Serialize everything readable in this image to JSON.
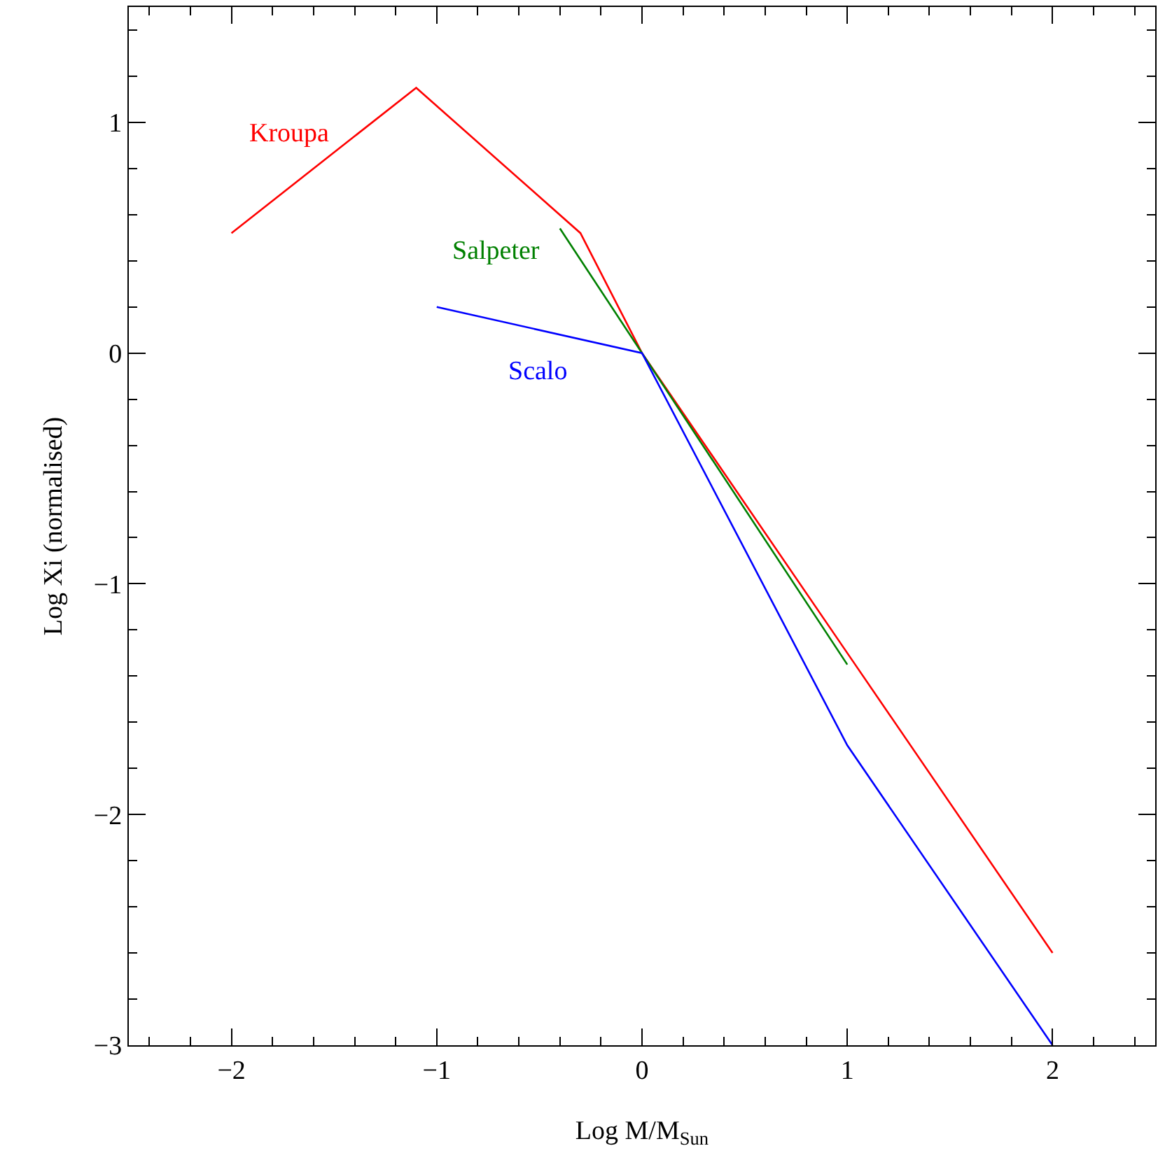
{
  "chart_data": {
    "type": "line",
    "xlabel": "Log M/M$_{Sun}$",
    "ylabel": "Log Xi (normalised)",
    "xlim": [
      -2.5,
      2.5
    ],
    "ylim": [
      -3,
      1.5
    ],
    "xticks": [
      {
        "value": -2,
        "label": "−2"
      },
      {
        "value": -1,
        "label": "−1"
      },
      0,
      1,
      2
    ],
    "yticks": [
      {
        "value": -3,
        "label": "−3"
      },
      {
        "value": -2,
        "label": "−2"
      },
      {
        "value": -1,
        "label": "−1"
      },
      0,
      1
    ],
    "grid": false,
    "legend": false,
    "marker": "none",
    "line_style": "solid",
    "series": [
      {
        "name": "Kroupa",
        "color": "#ff0000",
        "x": [
          -2,
          -1.1,
          -0.3,
          0,
          1,
          2
        ],
        "values": [
          0.52,
          1.15,
          0.52,
          0,
          -1.3,
          -2.6
        ]
      },
      {
        "name": "Salpeter",
        "color": "#008000",
        "x": [
          -0.4,
          1
        ],
        "values": [
          0.54,
          -1.35
        ]
      },
      {
        "name": "Scalo",
        "color": "#0000ff",
        "x": [
          -1,
          0,
          1,
          2
        ],
        "values": [
          0.2,
          0,
          -1.7,
          -3
        ]
      }
    ]
  }
}
